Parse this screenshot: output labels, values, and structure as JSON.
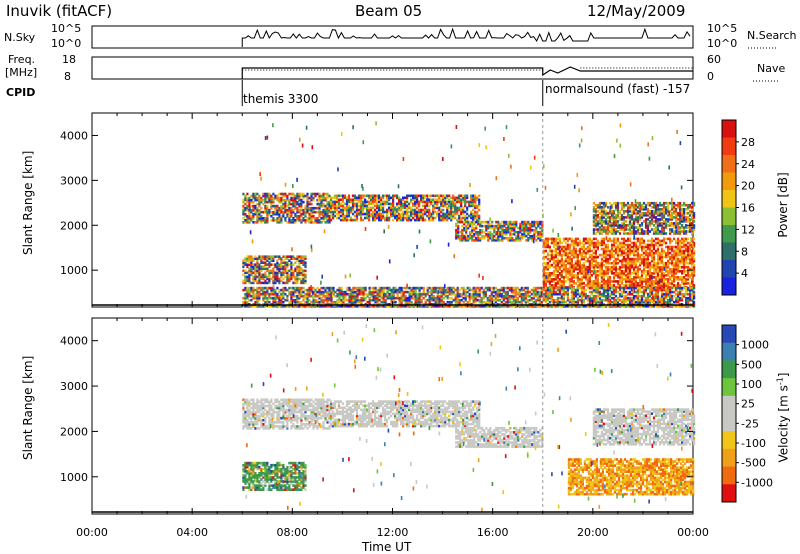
{
  "header": {
    "station": "Inuvik (fitACF)",
    "beam": "Beam 05",
    "date": "12/May/2009"
  },
  "strip_labels": {
    "nsky": "N.Sky",
    "nsky_ticks": [
      "10^5",
      "10^0"
    ],
    "nsearch": "N.Search",
    "nsearch_ticks": [
      "10^5",
      "10^0"
    ],
    "freq_top": "Freq.",
    "freq_unit": "[MHz]",
    "freq_ticks": [
      "18",
      "8"
    ],
    "nave": "Nave",
    "nave_ticks": [
      "60",
      "0"
    ],
    "cpid": "CPID",
    "cpid_modes": [
      "themis 3300",
      "normalsound (fast) -157"
    ]
  },
  "colors": {
    "power": [
      "#1a22e0",
      "#2244b0",
      "#2e6f6a",
      "#3f9a4c",
      "#8cc034",
      "#f0c414",
      "#f09a0c",
      "#f0701a",
      "#f03c10",
      "#d81010"
    ],
    "velocity": [
      "#2848b8",
      "#3a80b0",
      "#3a9a4a",
      "#6cc53c",
      "#c8c8c4",
      "#c8c8c4",
      "#f0c418",
      "#f0a018",
      "#f06a10",
      "#e01010"
    ]
  },
  "chart_data": [
    {
      "type": "heatmap",
      "ylabel": "Slant Range [km]",
      "xlabel": "",
      "x_ticks": [
        "00:00",
        "04:00",
        "08:00",
        "12:00",
        "16:00",
        "20:00",
        "00:00"
      ],
      "y_ticks": [
        1000,
        2000,
        3000,
        4000
      ],
      "ylim": [
        180,
        4500
      ],
      "xlim_hours": [
        0,
        24
      ],
      "colorbar": {
        "label": "Power [dB]",
        "ticks": [
          4,
          8,
          12,
          16,
          20,
          24,
          28
        ]
      },
      "regions": [
        {
          "x": [
            6.0,
            9.5
          ],
          "y": [
            2050,
            2700
          ],
          "v": "mixed"
        },
        {
          "x": [
            6.0,
            8.5
          ],
          "y": [
            700,
            1300
          ],
          "v": "mixed"
        },
        {
          "x": [
            9.5,
            15.5
          ],
          "y": [
            2100,
            2650
          ],
          "v": "mixed"
        },
        {
          "x": [
            14.5,
            18.0
          ],
          "y": [
            1650,
            2100
          ],
          "v": "mixed"
        },
        {
          "x": [
            18.0,
            24.0
          ],
          "y": [
            600,
            1700
          ],
          "v": "high"
        },
        {
          "x": [
            20.0,
            24.0
          ],
          "y": [
            1800,
            2500
          ],
          "v": "mixed"
        },
        {
          "x": [
            6.0,
            24.0
          ],
          "y": [
            180,
            600
          ],
          "v": "mixed"
        }
      ]
    },
    {
      "type": "heatmap",
      "ylabel": "Slant Range [km]",
      "xlabel": "Time UT",
      "x_ticks": [
        "00:00",
        "04:00",
        "08:00",
        "12:00",
        "16:00",
        "20:00",
        "00:00"
      ],
      "y_ticks": [
        1000,
        2000,
        3000,
        4000
      ],
      "ylim": [
        180,
        4500
      ],
      "xlim_hours": [
        0,
        24
      ],
      "colorbar": {
        "label": "Velocity [m s^-1]",
        "ticks": [
          1000,
          500,
          100,
          25,
          -25,
          -100,
          -500,
          -1000
        ]
      },
      "regions": [
        {
          "x": [
            6.0,
            9.5
          ],
          "y": [
            2050,
            2700
          ],
          "v": "near-zero"
        },
        {
          "x": [
            6.0,
            8.5
          ],
          "y": [
            700,
            1300
          ],
          "v": "positive"
        },
        {
          "x": [
            9.5,
            15.5
          ],
          "y": [
            2100,
            2650
          ],
          "v": "near-zero"
        },
        {
          "x": [
            14.5,
            18.0
          ],
          "y": [
            1650,
            2100
          ],
          "v": "near-zero"
        },
        {
          "x": [
            19.0,
            24.0
          ],
          "y": [
            600,
            1400
          ],
          "v": "negative"
        },
        {
          "x": [
            20.0,
            24.0
          ],
          "y": [
            1700,
            2500
          ],
          "v": "near-zero"
        }
      ]
    }
  ]
}
